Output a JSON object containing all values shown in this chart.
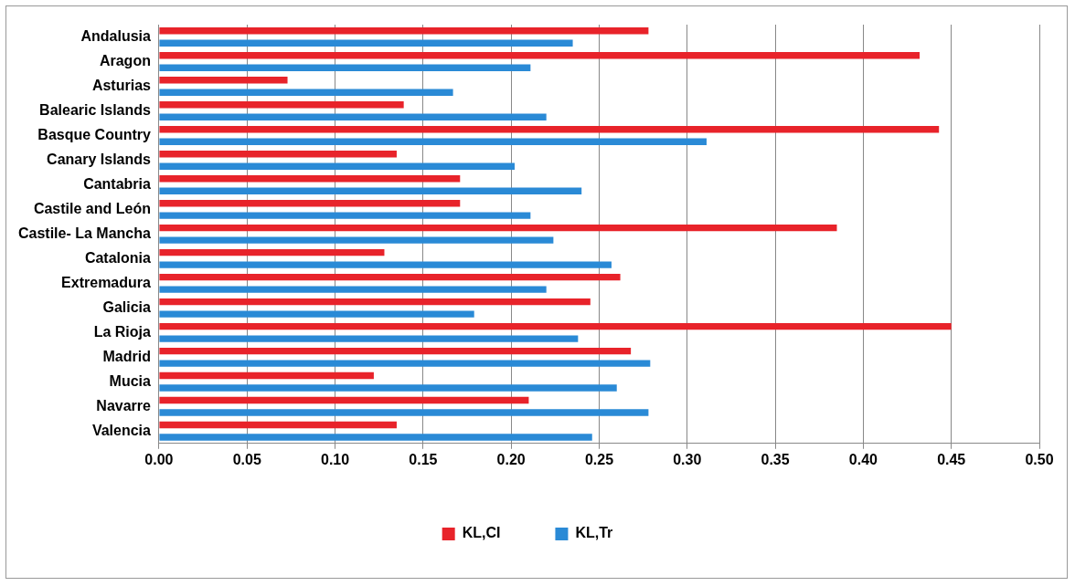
{
  "chart_data": {
    "type": "bar",
    "orientation": "horizontal",
    "categories": [
      "Andalusia",
      "Aragon",
      "Asturias",
      "Balearic Islands",
      "Basque Country",
      "Canary Islands",
      "Cantabria",
      "Castile and León",
      "Castile- La Mancha",
      "Catalonia",
      "Extremadura",
      "Galicia",
      "La Rioja",
      "Madrid",
      "Mucia",
      "Navarre",
      "Valencia"
    ],
    "series": [
      {
        "name": "KL,CI",
        "color": "#e8232a",
        "values": [
          0.278,
          0.432,
          0.073,
          0.139,
          0.443,
          0.135,
          0.171,
          0.171,
          0.385,
          0.128,
          0.262,
          0.245,
          0.45,
          0.268,
          0.122,
          0.21,
          0.135
        ]
      },
      {
        "name": "KL,Tr",
        "color": "#2a8ad6",
        "values": [
          0.235,
          0.211,
          0.167,
          0.22,
          0.311,
          0.202,
          0.24,
          0.211,
          0.224,
          0.257,
          0.22,
          0.179,
          0.238,
          0.279,
          0.26,
          0.278,
          0.246
        ]
      }
    ],
    "xlim": [
      0,
      0.5
    ],
    "xticks": [
      {
        "value": 0,
        "label": "0.00"
      },
      {
        "value": 0.05,
        "label": "0.05"
      },
      {
        "value": 0.1,
        "label": "0.10"
      },
      {
        "value": 0.15,
        "label": "0.15"
      },
      {
        "value": 0.2,
        "label": "0.20"
      },
      {
        "value": 0.25,
        "label": "0.25"
      },
      {
        "value": 0.3,
        "label": "0.30"
      },
      {
        "value": 0.35,
        "label": "0.35"
      },
      {
        "value": 0.4,
        "label": "0.40"
      },
      {
        "value": 0.45,
        "label": "0.45"
      },
      {
        "value": 0.5,
        "label": "0.50"
      }
    ],
    "grid": "x",
    "legend": "bottom"
  }
}
